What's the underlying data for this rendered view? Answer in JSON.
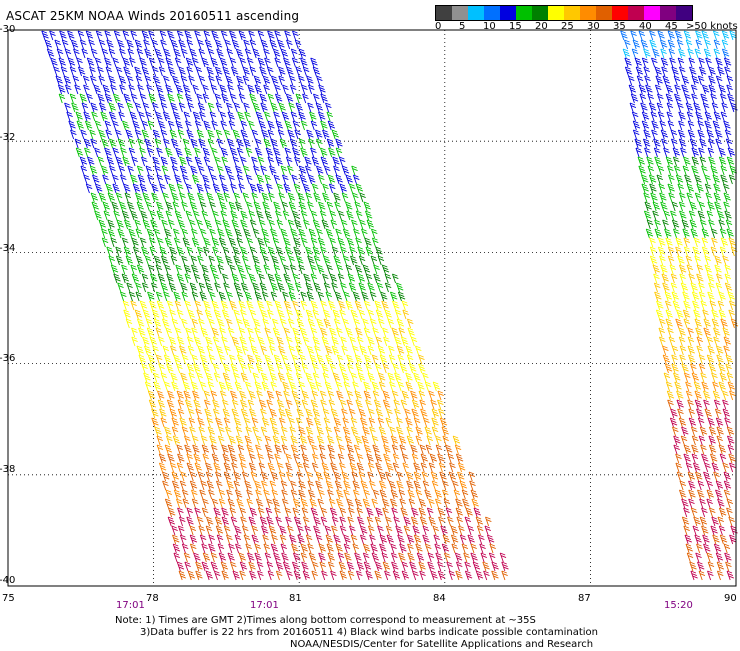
{
  "title": "ASCAT 25KM NOAA Winds 20160511 ascending",
  "colorbar": {
    "colors": [
      "#404040",
      "#909090",
      "#00c0ff",
      "#0070ff",
      "#0000e0",
      "#00c000",
      "#008000",
      "#ffff00",
      "#ffc800",
      "#ff8c00",
      "#e06000",
      "#ff0000",
      "#c00050",
      "#ff00ff",
      "#800080",
      "#400080"
    ],
    "labels": [
      "0",
      "5",
      "10",
      "15",
      "20",
      "25",
      "30",
      "35",
      "40",
      "45",
      ">50 knots"
    ]
  },
  "latitude_labels": [
    "-30",
    "-32",
    "-34",
    "-36",
    "-38",
    "-40"
  ],
  "longitude_labels": [
    "75",
    "78",
    "81",
    "84",
    "87",
    "90"
  ],
  "pass_times": [
    "17:01",
    "17:01",
    "15:20"
  ],
  "notes": [
    "Note: 1) Times are GMT 2)Times along bottom correspond to measurement at ~35S",
    "3)Data buffer is 22 hrs from 20160511 4) Black wind barbs indicate possible contamination",
    "NOAA/NESDIS/Center for Satellite Applications and Research"
  ],
  "map": {
    "projection": "lat-lon",
    "lat_range": [
      -40,
      -30
    ],
    "lon_range": [
      75,
      90
    ],
    "grid": "dotted",
    "wind_speed_bands_by_latitude": [
      {
        "lat": "-30 to -33",
        "speed_knots": "15-20",
        "color": "#0000e0"
      },
      {
        "lat": "-33 to -35",
        "speed_knots": "20-25",
        "color": "#00c000"
      },
      {
        "lat": "-35 to -37",
        "speed_knots": "25-30",
        "color": "#ffff00"
      },
      {
        "lat": "-37 to -38.5",
        "speed_knots": "30-35",
        "color": "#ff8c00"
      },
      {
        "lat": "-38.5 to -40",
        "speed_knots": "35-45",
        "color": "#e06000"
      }
    ]
  }
}
